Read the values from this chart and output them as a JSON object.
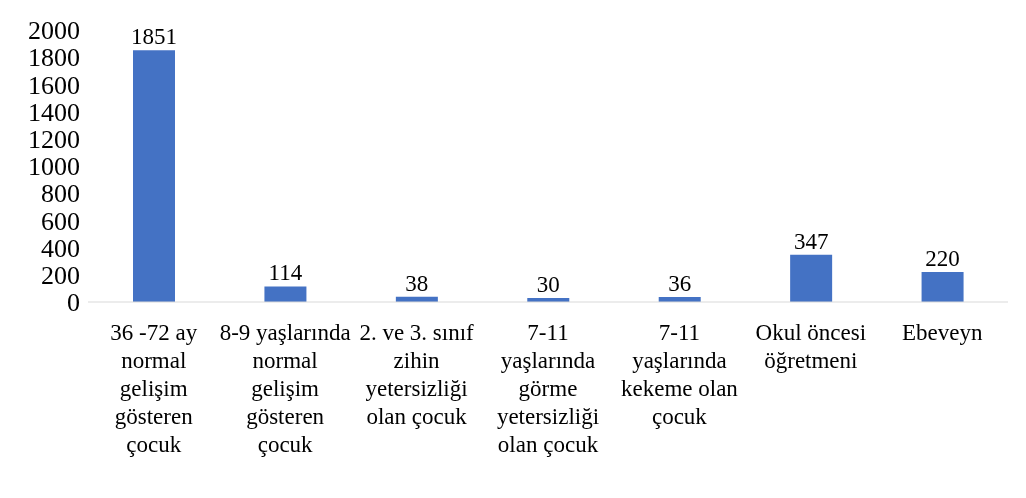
{
  "chart_data": {
    "type": "bar",
    "categories": [
      "36 -72 ay normal gelişim gösteren çocuk",
      "8-9 yaşlarında normal gelişim gösteren çocuk",
      "2. ve 3. sınıf zihin yetersizliği olan çocuk",
      "7-11 yaşlarında görme yetersizliği olan çocuk",
      "7-11 yaşlarında kekeme olan çocuk",
      "Okul öncesi öğretmeni",
      "Ebeveyn"
    ],
    "values": [
      1851,
      114,
      38,
      30,
      36,
      347,
      220
    ],
    "color": "#4472c4",
    "ylim": [
      0,
      2000
    ],
    "yticks": [
      0,
      200,
      400,
      600,
      800,
      1000,
      1200,
      1400,
      1600,
      1800,
      2000
    ],
    "data_labels": true,
    "grid": false,
    "legend": false
  }
}
